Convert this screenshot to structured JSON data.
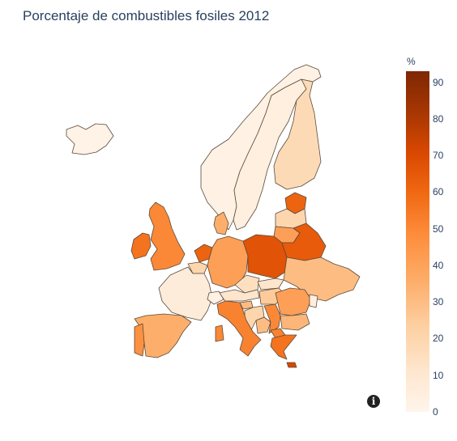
{
  "title": "Porcentaje de combustibles fosiles 2012",
  "colorbar": {
    "unit": "%",
    "ticks": [
      "90",
      "80",
      "70",
      "60",
      "50",
      "40",
      "30",
      "20",
      "10",
      "0"
    ],
    "range": [
      0,
      93
    ]
  },
  "colors": {
    "scale": [
      "#fff5eb",
      "#fee6ce",
      "#fdd0a2",
      "#fdae6b",
      "#fd8d3c",
      "#f16913",
      "#d94801",
      "#a63603",
      "#7f2704"
    ],
    "title": "#2a3f5f",
    "border": "#5a4a3a"
  },
  "info_icon": "info-icon",
  "regions": [
    {
      "name": "iceland",
      "value": 2
    },
    {
      "name": "norway",
      "value": 3
    },
    {
      "name": "sweden",
      "value": 5
    },
    {
      "name": "finland",
      "value": 18
    },
    {
      "name": "estonia",
      "value": 60
    },
    {
      "name": "latvia",
      "value": 20
    },
    {
      "name": "lithuania",
      "value": 40
    },
    {
      "name": "ireland",
      "value": 55
    },
    {
      "name": "uk",
      "value": 48
    },
    {
      "name": "denmark",
      "value": 35
    },
    {
      "name": "netherlands",
      "value": 60
    },
    {
      "name": "belgium",
      "value": 20
    },
    {
      "name": "france",
      "value": 7
    },
    {
      "name": "germany",
      "value": 40
    },
    {
      "name": "poland",
      "value": 66
    },
    {
      "name": "belarus",
      "value": 63
    },
    {
      "name": "ukraine",
      "value": 30
    },
    {
      "name": "czechia",
      "value": 15
    },
    {
      "name": "slovakia",
      "value": 12
    },
    {
      "name": "austria",
      "value": 12
    },
    {
      "name": "switzerland",
      "value": 3
    },
    {
      "name": "hungary",
      "value": 25
    },
    {
      "name": "slovenia",
      "value": 30
    },
    {
      "name": "croatia",
      "value": 20
    },
    {
      "name": "bosnia",
      "value": 30
    },
    {
      "name": "serbia",
      "value": 48
    },
    {
      "name": "romania",
      "value": 40
    },
    {
      "name": "moldova",
      "value": 5
    },
    {
      "name": "bulgaria",
      "value": 32
    },
    {
      "name": "macedonia",
      "value": 50
    },
    {
      "name": "greece",
      "value": 55
    },
    {
      "name": "italy",
      "value": 50
    },
    {
      "name": "sardinia",
      "value": 48
    },
    {
      "name": "spain",
      "value": 35
    },
    {
      "name": "portugal",
      "value": 45
    },
    {
      "name": "cyprus",
      "value": 70
    }
  ]
}
